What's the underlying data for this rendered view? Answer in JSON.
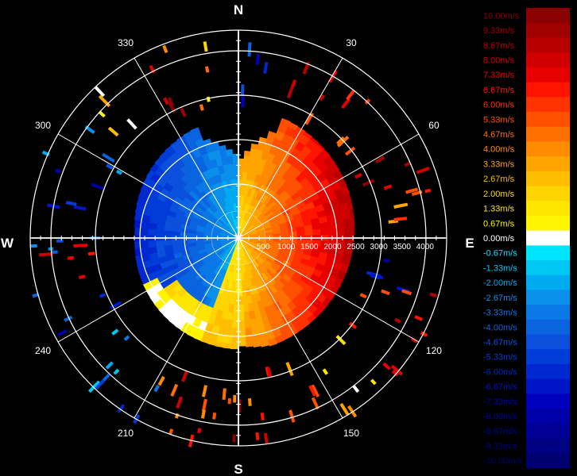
{
  "compass": {
    "north": "N",
    "east": "E",
    "south": "S",
    "west": "W"
  },
  "bearings": [
    {
      "deg": 30,
      "label": "30"
    },
    {
      "deg": 60,
      "label": "60"
    },
    {
      "deg": 120,
      "label": "120"
    },
    {
      "deg": 150,
      "label": "150"
    },
    {
      "deg": 210,
      "label": "210"
    },
    {
      "deg": 240,
      "label": "240"
    },
    {
      "deg": 300,
      "label": "300"
    },
    {
      "deg": 330,
      "label": "330"
    }
  ],
  "range_labels": [
    "500",
    "1000",
    "1500",
    "2000",
    "2500",
    "3000",
    "3500",
    "4000"
  ],
  "range_max": 4500,
  "legend": [
    {
      "label": "10.00m/s",
      "color": "#8b0000"
    },
    {
      "label": "9.33m/s",
      "color": "#a00000"
    },
    {
      "label": "8.67m/s",
      "color": "#b80000"
    },
    {
      "label": "8.00m/s",
      "color": "#d00000"
    },
    {
      "label": "7.33m/s",
      "color": "#e80000"
    },
    {
      "label": "6.67m/s",
      "color": "#ff1400"
    },
    {
      "label": "6.00m/s",
      "color": "#ff3200"
    },
    {
      "label": "5.33m/s",
      "color": "#ff5000"
    },
    {
      "label": "4.67m/s",
      "color": "#ff6e00"
    },
    {
      "label": "4.00m/s",
      "color": "#ff8c00"
    },
    {
      "label": "3.33m/s",
      "color": "#ffa500"
    },
    {
      "label": "2.67m/s",
      "color": "#ffbe00"
    },
    {
      "label": "2.00m/s",
      "color": "#ffd400"
    },
    {
      "label": "1.33m/s",
      "color": "#ffe600"
    },
    {
      "label": "0.67m/s",
      "color": "#fff500"
    },
    {
      "label": "0.00m/s",
      "color": "#ffffff"
    },
    {
      "label": "-0.67m/s",
      "color": "#00e5ff"
    },
    {
      "label": "-1.33m/s",
      "color": "#00c8f5"
    },
    {
      "label": "-2.00m/s",
      "color": "#00aaf0"
    },
    {
      "label": "-2.67m/s",
      "color": "#0a90ea"
    },
    {
      "label": "-3.33m/s",
      "color": "#0a78e6"
    },
    {
      "label": "-4.00m/s",
      "color": "#0a64e0"
    },
    {
      "label": "-4.67m/s",
      "color": "#0a50dc"
    },
    {
      "label": "-5.33m/s",
      "color": "#003cd8"
    },
    {
      "label": "-6.00m/s",
      "color": "#0028d0"
    },
    {
      "label": "-6.67m/s",
      "color": "#0014c8"
    },
    {
      "label": "-7.33m/s",
      "color": "#0000be"
    },
    {
      "label": "-8.00m/s",
      "color": "#0000a8"
    },
    {
      "label": "-8.67m/s",
      "color": "#000096"
    },
    {
      "label": "-9.33m/s",
      "color": "#000082"
    },
    {
      "label": "-10.00m/s",
      "color": "#000070"
    }
  ]
}
